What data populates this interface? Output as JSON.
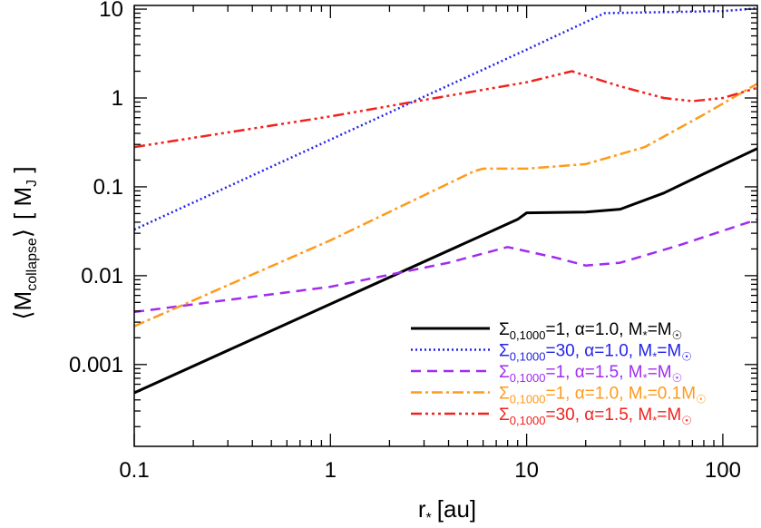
{
  "chart_data": {
    "type": "line",
    "x_scale": "log",
    "y_scale": "log",
    "xlim": [
      0.1,
      150
    ],
    "ylim": [
      0.00012,
      11
    ],
    "xlabel": "r* [au]",
    "xlabel_parts": {
      "symbol": "r",
      "sub": "*",
      "unit": "[au]"
    },
    "ylabel": "⟨Mcollapse⟩ [MJ]",
    "ylabel_parts": {
      "open": "⟨M",
      "sub": "collapse",
      "close": "⟩",
      "unit_open": "[ M",
      "unit_sub": "J",
      "unit_close": " ]"
    },
    "x_ticks": [
      {
        "value": 0.1,
        "label": "0.1"
      },
      {
        "value": 1,
        "label": "1"
      },
      {
        "value": 10,
        "label": "10"
      },
      {
        "value": 100,
        "label": "100"
      }
    ],
    "y_ticks": [
      {
        "value": 0.001,
        "label": "0.001"
      },
      {
        "value": 0.01,
        "label": "0.01"
      },
      {
        "value": 0.1,
        "label": "0.1"
      },
      {
        "value": 1,
        "label": "1"
      },
      {
        "value": 10,
        "label": "10"
      }
    ],
    "legend_position": "bottom-right",
    "series": [
      {
        "name": "Σ0,1000=1, α=1.0, M*=M☉",
        "color": "#000000",
        "dash": "solid",
        "label_parts": {
          "sigma_sub": "0,1000",
          "sigma_val": "=1, α=1.0, M",
          "mstar_sub": "*",
          "mstar_val": "=M",
          "sun": "☉"
        },
        "x": [
          0.1,
          1,
          9,
          10,
          20,
          30,
          50,
          80,
          150
        ],
        "y": [
          0.00048,
          0.0048,
          0.043,
          0.051,
          0.052,
          0.056,
          0.085,
          0.14,
          0.27
        ]
      },
      {
        "name": "Σ0,1000=30, α=1.0, M*=M☉",
        "color": "#2323e8",
        "dash": "dotted",
        "label_parts": {
          "sigma_sub": "0,1000",
          "sigma_val": "=30, α=1.0, M",
          "mstar_sub": "*",
          "mstar_val": "=M",
          "sun": "☉"
        },
        "x": [
          0.1,
          1,
          10,
          25,
          100,
          150
        ],
        "y": [
          0.033,
          0.34,
          3.5,
          9.0,
          9.5,
          10.2
        ]
      },
      {
        "name": "Σ0,1000=1, α=1.5, M*=M☉",
        "color": "#a02cf0",
        "dash": "dashed",
        "label_parts": {
          "sigma_sub": "0,1000",
          "sigma_val": "=1, α=1.5, M",
          "mstar_sub": "*",
          "mstar_val": "=M",
          "sun": "☉"
        },
        "x": [
          0.1,
          1,
          4,
          8,
          14,
          20,
          30,
          60,
          150
        ],
        "y": [
          0.0039,
          0.0075,
          0.014,
          0.021,
          0.016,
          0.013,
          0.014,
          0.022,
          0.043
        ]
      },
      {
        "name": "Σ0,1000=1, α=1.0, M*=0.1M☉",
        "color": "#ff9a1a",
        "dash": "dashdot",
        "label_parts": {
          "sigma_sub": "0,1000",
          "sigma_val": "=1, α=1.0, M",
          "mstar_sub": "*",
          "mstar_val": "=0.1M",
          "sun": "☉"
        },
        "x": [
          0.1,
          1,
          5.4,
          6,
          10,
          20,
          40,
          80,
          150
        ],
        "y": [
          0.0027,
          0.025,
          0.15,
          0.16,
          0.16,
          0.18,
          0.28,
          0.65,
          1.45
        ]
      },
      {
        "name": "Σ0,1000=30, α=1.5, M*=M☉",
        "color": "#f0221e",
        "dash": "dashdotdotdot",
        "label_parts": {
          "sigma_sub": "0,1000",
          "sigma_val": "=30, α=1.5, M",
          "mstar_sub": "*",
          "mstar_val": "=M",
          "sun": "☉"
        },
        "x": [
          0.1,
          1,
          3,
          10,
          17,
          30,
          50,
          70,
          100,
          150
        ],
        "y": [
          0.28,
          0.62,
          0.95,
          1.5,
          2.0,
          1.35,
          1.0,
          0.92,
          1.0,
          1.3
        ]
      }
    ]
  }
}
